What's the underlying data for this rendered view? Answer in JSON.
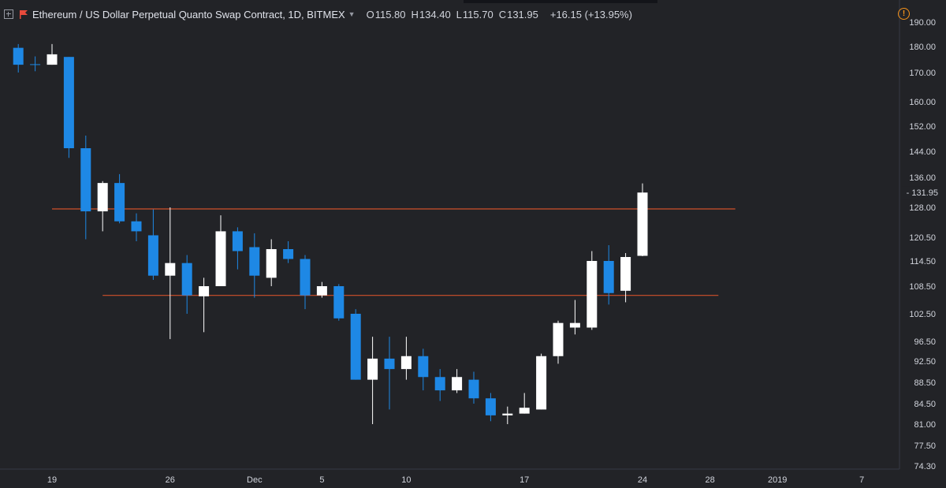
{
  "header": {
    "title": "Ethereum / US Dollar Perpetual Quanto Swap Contract, 1D, BITMEX",
    "ohlc": [
      {
        "key": "O",
        "value": "115.80"
      },
      {
        "key": "H",
        "value": "134.40"
      },
      {
        "key": "L",
        "value": "115.70"
      },
      {
        "key": "C",
        "value": "131.95"
      }
    ],
    "change": "+16.15 (+13.95%)",
    "icons": [
      "expand-icon",
      "flag-icon",
      "chevron-down-icon",
      "alert-icon"
    ]
  },
  "colors": {
    "background": "#222327",
    "up": "#ffffff",
    "down": "#1e88e5",
    "horizontal_line": "#d0502b",
    "axis_text": "#d1d4dc",
    "change_text": "#e0e3eb"
  },
  "chart_data": {
    "type": "candlestick",
    "y_ticks": [
      "190.00",
      "180.00",
      "170.00",
      "160.00",
      "152.00",
      "144.00",
      "136.00",
      "128.00",
      "120.50",
      "114.50",
      "108.50",
      "102.50",
      "96.50",
      "92.50",
      "88.50",
      "84.50",
      "81.00",
      "77.50",
      "74.30"
    ],
    "x_ticks": [
      "19",
      "26",
      "Dec",
      "5",
      "10",
      "17",
      "24",
      "28",
      "2019",
      "7"
    ],
    "last_price_label": "131.95",
    "grid": false,
    "horizontal_lines": [
      {
        "price": 127.6,
        "from_day": 0,
        "to_day": 40.5
      },
      {
        "price": 106.5,
        "from_day": 3,
        "to_day": 39.5
      }
    ],
    "candles": [
      {
        "day": -2,
        "open": 179.5,
        "high": 181.0,
        "low": 170.0,
        "close": 173.0
      },
      {
        "day": -1,
        "open": 173.2,
        "high": 176.2,
        "low": 170.5,
        "close": 173.0
      },
      {
        "day": 0,
        "open": 173.0,
        "high": 181.0,
        "low": 173.0,
        "close": 177.0
      },
      {
        "day": 1,
        "open": 176.0,
        "high": 176.0,
        "low": 142.0,
        "close": 145.0
      },
      {
        "day": 2,
        "open": 145.0,
        "high": 149.0,
        "low": 120.0,
        "close": 127.0
      },
      {
        "day": 3,
        "open": 127.0,
        "high": 135.0,
        "low": 122.0,
        "close": 134.5
      },
      {
        "day": 4,
        "open": 134.5,
        "high": 137.0,
        "low": 124.0,
        "close": 124.5
      },
      {
        "day": 5,
        "open": 124.5,
        "high": 126.5,
        "low": 119.5,
        "close": 122.0
      },
      {
        "day": 6,
        "open": 121.0,
        "high": 127.5,
        "low": 110.0,
        "close": 111.0
      },
      {
        "day": 7,
        "open": 111.0,
        "high": 128.0,
        "low": 97.0,
        "close": 114.0
      },
      {
        "day": 8,
        "open": 114.0,
        "high": 116.0,
        "low": 102.5,
        "close": 106.5
      },
      {
        "day": 9,
        "open": 106.3,
        "high": 110.5,
        "low": 98.5,
        "close": 108.5
      },
      {
        "day": 10,
        "open": 108.5,
        "high": 126.0,
        "low": 108.5,
        "close": 122.0
      },
      {
        "day": 11,
        "open": 122.0,
        "high": 123.0,
        "low": 112.5,
        "close": 117.0
      },
      {
        "day": 12,
        "open": 118.0,
        "high": 121.5,
        "low": 106.0,
        "close": 111.0
      },
      {
        "day": 13,
        "open": 110.5,
        "high": 120.0,
        "low": 108.5,
        "close": 117.5
      },
      {
        "day": 14,
        "open": 117.5,
        "high": 119.5,
        "low": 114.0,
        "close": 115.0
      },
      {
        "day": 15,
        "open": 115.0,
        "high": 116.0,
        "low": 103.5,
        "close": 106.5
      },
      {
        "day": 16,
        "open": 106.5,
        "high": 109.5,
        "low": 106.0,
        "close": 108.5
      },
      {
        "day": 17,
        "open": 108.5,
        "high": 109.0,
        "low": 101.0,
        "close": 101.5
      },
      {
        "day": 18,
        "open": 102.5,
        "high": 103.5,
        "low": 89.0,
        "close": 89.0
      },
      {
        "day": 19,
        "open": 89.0,
        "high": 97.5,
        "low": 81.0,
        "close": 93.0
      },
      {
        "day": 20,
        "open": 93.0,
        "high": 97.5,
        "low": 83.5,
        "close": 91.0
      },
      {
        "day": 21,
        "open": 91.0,
        "high": 97.5,
        "low": 89.0,
        "close": 93.5
      },
      {
        "day": 22,
        "open": 93.5,
        "high": 95.0,
        "low": 87.0,
        "close": 89.5
      },
      {
        "day": 23,
        "open": 89.5,
        "high": 91.0,
        "low": 85.0,
        "close": 87.0
      },
      {
        "day": 24,
        "open": 87.0,
        "high": 91.0,
        "low": 86.5,
        "close": 89.5
      },
      {
        "day": 25,
        "open": 89.0,
        "high": 90.5,
        "low": 84.5,
        "close": 85.5
      },
      {
        "day": 26,
        "open": 85.5,
        "high": 86.5,
        "low": 81.5,
        "close": 82.5
      },
      {
        "day": 27,
        "open": 82.5,
        "high": 84.0,
        "low": 81.0,
        "close": 82.8
      },
      {
        "day": 28,
        "open": 82.8,
        "high": 86.5,
        "low": 82.8,
        "close": 83.8
      },
      {
        "day": 29,
        "open": 83.5,
        "high": 94.0,
        "low": 83.5,
        "close": 93.5
      },
      {
        "day": 30,
        "open": 93.5,
        "high": 101.0,
        "low": 92.0,
        "close": 100.5
      },
      {
        "day": 31,
        "open": 99.5,
        "high": 105.5,
        "low": 98.0,
        "close": 100.5
      },
      {
        "day": 32,
        "open": 99.5,
        "high": 117.0,
        "low": 99.0,
        "close": 114.5
      },
      {
        "day": 33,
        "open": 114.5,
        "high": 118.5,
        "low": 104.5,
        "close": 107.0
      },
      {
        "day": 34,
        "open": 107.5,
        "high": 116.5,
        "low": 105.0,
        "close": 115.5
      },
      {
        "day": 35,
        "open": 115.8,
        "high": 134.4,
        "low": 115.7,
        "close": 131.95
      }
    ],
    "x_tick_days": [
      0,
      7,
      12,
      16,
      21,
      28,
      35,
      39,
      43,
      48
    ]
  }
}
